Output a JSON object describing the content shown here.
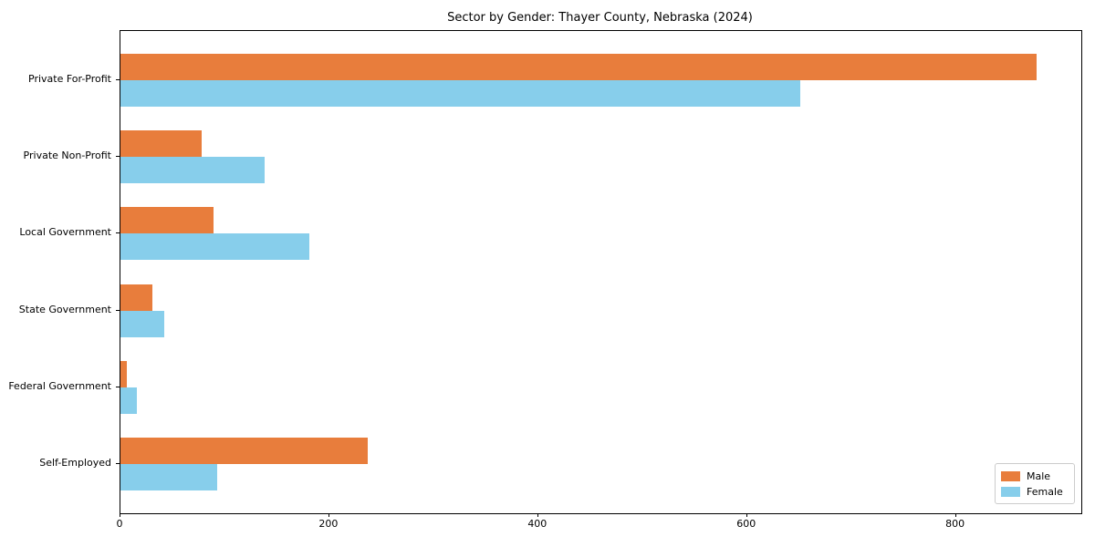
{
  "chart_data": {
    "type": "bar",
    "orientation": "horizontal",
    "title": "Sector by Gender: Thayer County, Nebraska (2024)",
    "categories": [
      "Private For-Profit",
      "Private Non-Profit",
      "Local Government",
      "State Government",
      "Federal Government",
      "Self-Employed"
    ],
    "series": [
      {
        "name": "Male",
        "color": "#e87d3c",
        "values": [
          877,
          78,
          89,
          31,
          6,
          237
        ]
      },
      {
        "name": "Female",
        "color": "#87ceeb",
        "values": [
          651,
          138,
          181,
          42,
          16,
          93
        ]
      }
    ],
    "xlabel": "",
    "ylabel": "",
    "xlim": [
      0,
      920
    ],
    "xticks": [
      0,
      200,
      400,
      600,
      800
    ],
    "grid": false,
    "legend_position": "lower right"
  },
  "colors": {
    "male": "#e87d3c",
    "female": "#87ceeb",
    "spine": "#000000",
    "legend_border": "#cccccc",
    "background": "#ffffff"
  }
}
